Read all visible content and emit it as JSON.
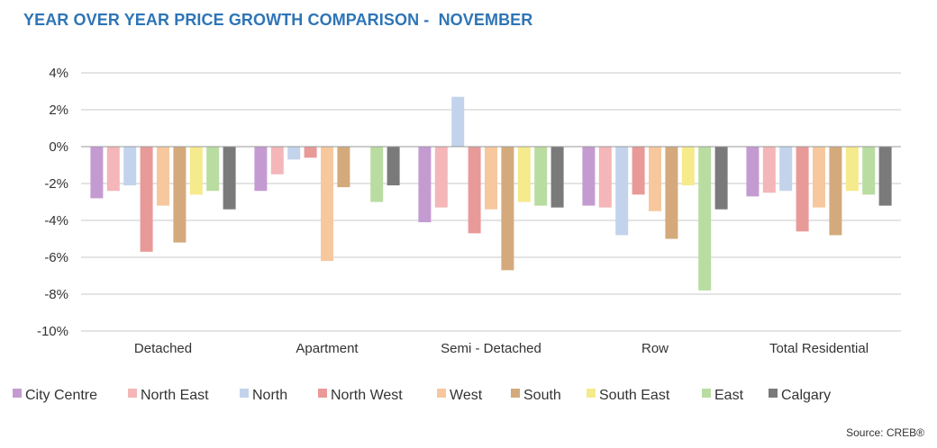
{
  "chart_data": {
    "type": "bar",
    "title": "YEAR OVER YEAR PRICE GROWTH COMPARISON -  NOVEMBER",
    "categories": [
      "Detached",
      "Apartment",
      "Semi - Detached",
      "Row",
      "Total Residential"
    ],
    "ylim": [
      -10,
      4
    ],
    "yticks": [
      4,
      2,
      0,
      -2,
      -4,
      -6,
      -8,
      -10
    ],
    "ytick_labels": [
      "4%",
      "2%",
      "0%",
      "-2%",
      "-4%",
      "-6%",
      "-8%",
      "-10%"
    ],
    "grid": true,
    "legend_position": "bottom",
    "series": [
      {
        "name": "City Centre",
        "color": "#c49bd1",
        "values": [
          -2.8,
          -2.4,
          -4.1,
          -3.2,
          -2.7
        ]
      },
      {
        "name": "North East",
        "color": "#f4b6b8",
        "values": [
          -2.4,
          -1.5,
          -3.3,
          -3.3,
          -2.5
        ]
      },
      {
        "name": "North",
        "color": "#c3d3ec",
        "values": [
          -2.1,
          -0.7,
          2.7,
          -4.8,
          -2.4
        ]
      },
      {
        "name": "North West",
        "color": "#e89a98",
        "values": [
          -5.7,
          -0.6,
          -4.7,
          -2.6,
          -4.6
        ]
      },
      {
        "name": "West",
        "color": "#f7c89d",
        "values": [
          -3.2,
          -6.2,
          -3.4,
          -3.5,
          -3.3
        ]
      },
      {
        "name": "South",
        "color": "#d4aa7d",
        "values": [
          -5.2,
          -2.2,
          -6.7,
          -5.0,
          -4.8
        ]
      },
      {
        "name": "South East",
        "color": "#f5ea8c",
        "values": [
          -2.6,
          0,
          -3.0,
          -2.1,
          -2.4
        ]
      },
      {
        "name": "East",
        "color": "#b9dca1",
        "values": [
          -2.4,
          -3.0,
          -3.2,
          -7.8,
          -2.6
        ]
      },
      {
        "name": "Calgary",
        "color": "#7a7a7a",
        "values": [
          -3.4,
          -2.1,
          -3.3,
          -3.4,
          -3.2
        ]
      }
    ]
  },
  "source": "Source: CREB®"
}
